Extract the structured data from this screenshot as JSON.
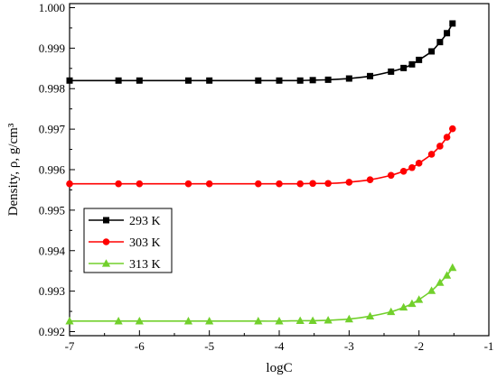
{
  "chart_data": {
    "type": "line",
    "title": "",
    "xlabel": "logC",
    "ylabel": "Density, ρ, g/cm³",
    "xlim": [
      -7,
      -1
    ],
    "ylim": [
      0.9919,
      1.0001
    ],
    "xticks": [
      "-7",
      "-6",
      "-5",
      "-4",
      "-3",
      "-2",
      "-1"
    ],
    "yticks": [
      "0.992",
      "0.993",
      "0.994",
      "0.995",
      "0.996",
      "0.997",
      "0.998",
      "0.999",
      "1.000"
    ],
    "grid": false,
    "legend_position": "center-left",
    "x": [
      -7,
      -6.3,
      -6,
      -5.3,
      -5,
      -4.3,
      -4,
      -3.7,
      -3.52,
      -3.3,
      -3,
      -2.7,
      -2.4,
      -2.22,
      -2.1,
      -2,
      -1.82,
      -1.7,
      -1.6,
      -1.52
    ],
    "series": [
      {
        "name": "293 K",
        "color": "#000000",
        "marker": "square",
        "values": [
          0.9982,
          0.9982,
          0.9982,
          0.9982,
          0.9982,
          0.9982,
          0.9982,
          0.9982,
          0.99821,
          0.99822,
          0.99825,
          0.99831,
          0.99842,
          0.99851,
          0.9986,
          0.99871,
          0.99892,
          0.99915,
          0.99937,
          0.99961
        ]
      },
      {
        "name": "303 K",
        "color": "#ff0000",
        "marker": "circle",
        "values": [
          0.99565,
          0.99565,
          0.99565,
          0.99565,
          0.99565,
          0.99565,
          0.99565,
          0.99565,
          0.99566,
          0.99566,
          0.99569,
          0.99575,
          0.99586,
          0.99596,
          0.99605,
          0.99616,
          0.99638,
          0.99658,
          0.9968,
          0.99701
        ]
      },
      {
        "name": "313 K",
        "color": "#72d02c",
        "marker": "triangle",
        "values": [
          0.99226,
          0.99226,
          0.99226,
          0.99226,
          0.99226,
          0.99226,
          0.99226,
          0.99227,
          0.99227,
          0.99228,
          0.99231,
          0.99238,
          0.99249,
          0.9926,
          0.99269,
          0.99279,
          0.99301,
          0.99321,
          0.99339,
          0.99358
        ]
      }
    ]
  }
}
